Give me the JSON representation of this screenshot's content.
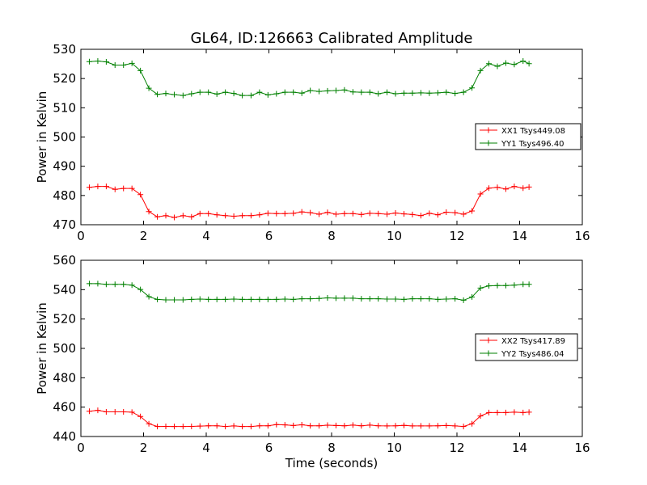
{
  "figure": {
    "title": "GL64, ID:126663 Calibrated Amplitude",
    "xlabel": "Time (seconds)"
  },
  "chart_data": [
    {
      "type": "line",
      "ylabel": "Power in Kelvin",
      "xlim": [
        0,
        16
      ],
      "ylim": [
        470,
        530
      ],
      "xticks": [
        0,
        2,
        4,
        6,
        8,
        10,
        12,
        14,
        16
      ],
      "yticks": [
        470,
        480,
        490,
        500,
        510,
        520,
        530
      ],
      "legend_position": "right",
      "x": [
        0.27,
        0.54,
        0.81,
        1.09,
        1.36,
        1.63,
        1.9,
        2.17,
        2.44,
        2.71,
        2.98,
        3.26,
        3.53,
        3.8,
        4.07,
        4.34,
        4.61,
        4.88,
        5.15,
        5.43,
        5.7,
        5.97,
        6.24,
        6.51,
        6.78,
        7.05,
        7.32,
        7.6,
        7.87,
        8.14,
        8.41,
        8.68,
        8.95,
        9.22,
        9.49,
        9.77,
        10.04,
        10.31,
        10.58,
        10.85,
        11.12,
        11.39,
        11.66,
        11.94,
        12.21,
        12.48,
        12.75,
        13.02,
        13.29,
        13.56,
        13.83,
        14.11,
        14.3
      ],
      "series": [
        {
          "name": "XX1 Tsys449.08",
          "color": "#ff0000",
          "values": [
            482.8,
            483.1,
            483.1,
            482.1,
            482.4,
            482.4,
            480.3,
            474.5,
            472.7,
            473.1,
            472.5,
            473.1,
            472.7,
            473.8,
            473.8,
            473.4,
            473.1,
            472.9,
            473.1,
            473.1,
            473.4,
            473.9,
            473.8,
            473.8,
            473.9,
            474.4,
            474.1,
            473.6,
            474.2,
            473.6,
            473.8,
            473.8,
            473.5,
            473.9,
            473.8,
            473.6,
            474.0,
            473.7,
            473.5,
            473.1,
            473.9,
            473.4,
            474.3,
            474.1,
            473.6,
            474.7,
            480.5,
            482.5,
            482.8,
            482.2,
            483.1,
            482.5,
            482.9
          ]
        },
        {
          "name": "YY1 Tsys496.40",
          "color": "#008000",
          "values": [
            525.8,
            526.0,
            525.7,
            524.6,
            524.6,
            525.2,
            522.7,
            516.7,
            514.6,
            514.9,
            514.5,
            514.2,
            514.8,
            515.3,
            515.3,
            514.7,
            515.3,
            514.9,
            514.2,
            514.2,
            515.3,
            514.4,
            514.8,
            515.3,
            515.3,
            515.0,
            515.9,
            515.6,
            515.8,
            515.9,
            516.1,
            515.4,
            515.3,
            515.3,
            514.8,
            515.3,
            514.8,
            515.0,
            515.0,
            515.1,
            515.0,
            515.1,
            515.3,
            514.9,
            515.3,
            516.8,
            522.7,
            525.1,
            524.2,
            525.3,
            524.8,
            526.0,
            525.1
          ]
        }
      ]
    },
    {
      "type": "line",
      "ylabel": "Power in Kelvin",
      "xlabel": "Time (seconds)",
      "xlim": [
        0,
        16
      ],
      "ylim": [
        440,
        560
      ],
      "xticks": [
        0,
        2,
        4,
        6,
        8,
        10,
        12,
        14,
        16
      ],
      "yticks": [
        440,
        460,
        480,
        500,
        520,
        540,
        560
      ],
      "legend_position": "right",
      "x": [
        0.27,
        0.54,
        0.81,
        1.09,
        1.36,
        1.63,
        1.9,
        2.17,
        2.44,
        2.71,
        2.98,
        3.26,
        3.53,
        3.8,
        4.07,
        4.34,
        4.61,
        4.88,
        5.15,
        5.43,
        5.7,
        5.97,
        6.24,
        6.51,
        6.78,
        7.05,
        7.32,
        7.6,
        7.87,
        8.14,
        8.41,
        8.68,
        8.95,
        9.22,
        9.49,
        9.77,
        10.04,
        10.31,
        10.58,
        10.85,
        11.12,
        11.39,
        11.66,
        11.94,
        12.21,
        12.48,
        12.75,
        13.02,
        13.29,
        13.56,
        13.83,
        14.11,
        14.3
      ],
      "series": [
        {
          "name": "XX2 Tsys417.89",
          "color": "#ff0000",
          "values": [
            457.2,
            457.8,
            456.8,
            456.8,
            456.8,
            456.6,
            453.6,
            448.7,
            446.8,
            446.9,
            446.8,
            446.8,
            446.9,
            447.1,
            447.3,
            447.3,
            446.8,
            447.2,
            446.8,
            446.8,
            447.3,
            447.3,
            448.1,
            447.9,
            447.5,
            448.0,
            447.3,
            447.3,
            447.7,
            447.5,
            447.3,
            447.8,
            447.3,
            447.8,
            447.3,
            447.2,
            447.3,
            447.6,
            447.2,
            447.2,
            447.2,
            447.3,
            447.5,
            447.2,
            446.8,
            448.7,
            454.0,
            456.3,
            456.3,
            456.3,
            456.6,
            456.3,
            456.6
          ]
        },
        {
          "name": "YY2 Tsys486.04",
          "color": "#008000",
          "values": [
            544.1,
            544.1,
            543.6,
            543.6,
            543.6,
            543.1,
            540.1,
            535.2,
            533.4,
            533.0,
            533.0,
            533.0,
            533.4,
            533.6,
            533.4,
            533.4,
            533.4,
            533.6,
            533.4,
            533.4,
            533.4,
            533.4,
            533.4,
            533.6,
            533.4,
            533.8,
            533.8,
            534.0,
            534.4,
            534.2,
            534.2,
            534.2,
            533.8,
            533.8,
            533.8,
            533.6,
            533.6,
            533.4,
            533.8,
            533.8,
            533.8,
            533.4,
            533.6,
            533.8,
            532.8,
            535.0,
            541.1,
            542.6,
            542.8,
            542.8,
            543.1,
            543.6,
            543.6
          ]
        }
      ]
    }
  ]
}
